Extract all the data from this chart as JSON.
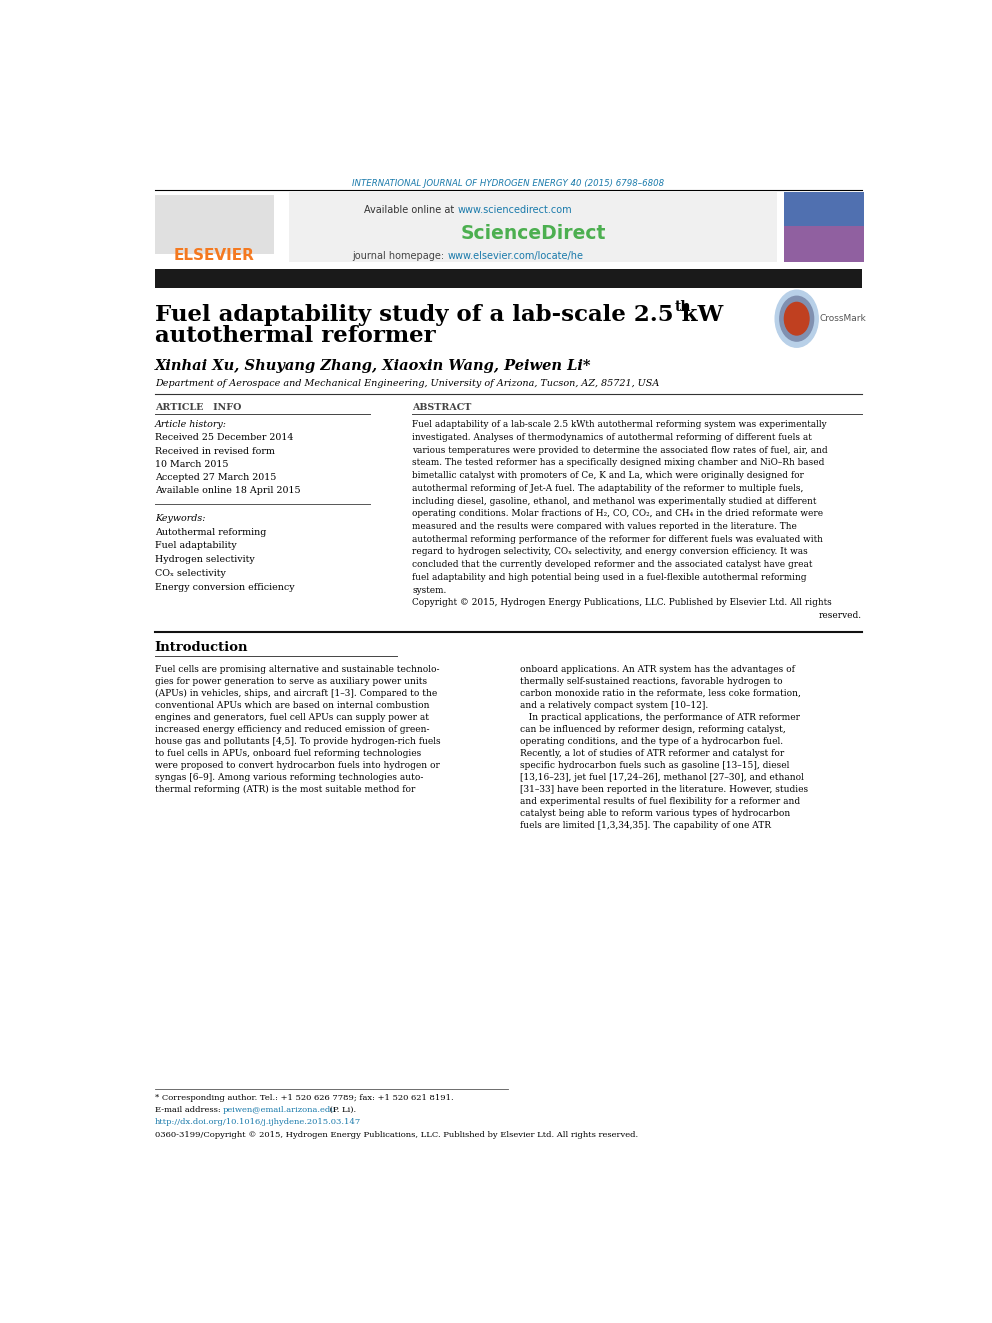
{
  "page_width": 9.92,
  "page_height": 13.23,
  "background_color": "#ffffff",
  "header_journal_text": "INTERNATIONAL JOURNAL OF HYDROGEN ENERGY 40 (2015) 6798–6808",
  "header_journal_color": "#1a7aab",
  "header_line_color": "#000000",
  "elsevier_color": "#f47920",
  "www_sd_color": "#1a7aab",
  "sciencedirect_text": "ScienceDirect",
  "sciencedirect_color": "#4caf50",
  "www_elsevier_color": "#1a7aab",
  "black_bar_color": "#1a1a1a",
  "paper_title_line1": "Fuel adaptability study of a lab-scale 2.5 kW",
  "paper_title_th": "th",
  "paper_title_line2": "autothermal reformer",
  "paper_title_color": "#000000",
  "authors_text": "Xinhai Xu, Shuyang Zhang, Xiaoxin Wang, Peiwen Li",
  "authors_color": "#000000",
  "affiliation_text": "Department of Aerospace and Mechanical Engineering, University of Arizona, Tucson, AZ, 85721, USA",
  "affiliation_color": "#000000",
  "article_info_header": "ARTICLE   INFO",
  "abstract_header": "ABSTRACT",
  "article_history_label": "Article history:",
  "received_text": "Received 25 December 2014",
  "revised_text": "Received in revised form",
  "revised_text2": "10 March 2015",
  "accepted_text": "Accepted 27 March 2015",
  "available_text": "Available online 18 April 2015",
  "keywords_label": "Keywords:",
  "keyword1": "Autothermal reforming",
  "keyword2": "Fuel adaptability",
  "keyword3": "Hydrogen selectivity",
  "keyword4": "COₓ selectivity",
  "keyword5": "Energy conversion efficiency",
  "copyright_text": "Copyright © 2015, Hydrogen Energy Publications, LLC. Published by Elsevier Ltd. All rights",
  "copyright_text2": "reserved.",
  "intro_header": "Introduction",
  "separator_color": "#000000",
  "body_text_color": "#000000",
  "link_color": "#1a7aab",
  "footnote_star": "* Corresponding author. Tel.: +1 520 626 7789; fax: +1 520 621 8191.",
  "footnote_email_pre": "E-mail address: ",
  "footnote_email": "peiwen@email.arizona.edu",
  "footnote_email_post": " (P. Li).",
  "footnote_doi": "http://dx.doi.org/10.1016/j.ijhydene.2015.03.147",
  "footnote_issn": "0360-3199/Copyright © 2015, Hydrogen Energy Publications, LLC. Published by Elsevier Ltd. All rights reserved."
}
